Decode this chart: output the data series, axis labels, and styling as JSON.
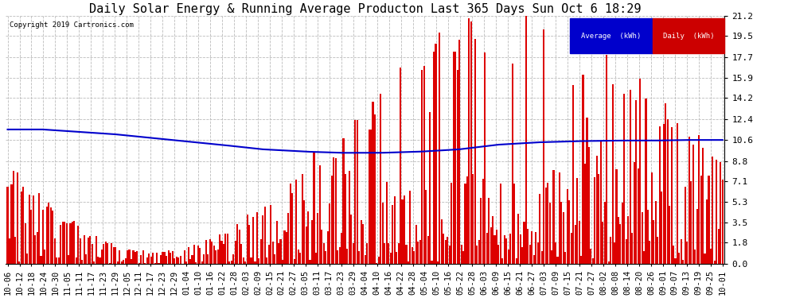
{
  "title": "Daily Solar Energy & Running Average Producton Last 365 Days Sun Oct 6 18:29",
  "copyright": "Copyright 2019 Cartronics.com",
  "yticks": [
    0.0,
    1.8,
    3.5,
    5.3,
    7.1,
    8.8,
    10.6,
    12.4,
    14.2,
    15.9,
    17.7,
    19.5,
    21.2
  ],
  "ymax": 21.2,
  "bar_color": "#dd0000",
  "avg_color": "#0000cc",
  "background_color": "#ffffff",
  "plot_bg_color": "#ffffff",
  "grid_color": "#bbbbbb",
  "legend_avg_bg": "#0000cc",
  "legend_daily_bg": "#cc0000",
  "legend_text_color": "#ffffff",
  "title_fontsize": 11,
  "tick_fontsize": 8,
  "n_bars": 365,
  "xtick_labels": [
    "10-06",
    "10-12",
    "10-18",
    "10-24",
    "10-30",
    "11-05",
    "11-11",
    "11-17",
    "11-23",
    "11-29",
    "12-05",
    "12-11",
    "12-17",
    "12-23",
    "12-29",
    "01-04",
    "01-10",
    "01-16",
    "01-22",
    "01-28",
    "02-03",
    "02-09",
    "02-15",
    "02-21",
    "02-27",
    "03-05",
    "03-11",
    "03-17",
    "03-23",
    "03-29",
    "04-04",
    "04-10",
    "04-16",
    "04-22",
    "04-28",
    "05-04",
    "05-10",
    "05-16",
    "05-22",
    "05-28",
    "06-03",
    "06-09",
    "06-15",
    "06-21",
    "06-27",
    "07-03",
    "07-09",
    "07-15",
    "07-21",
    "07-27",
    "08-02",
    "08-08",
    "08-14",
    "08-20",
    "08-26",
    "09-01",
    "09-07",
    "09-13",
    "09-19",
    "09-25",
    "10-01"
  ],
  "avg_points": [
    11.5,
    11.5,
    11.3,
    11.1,
    10.8,
    10.5,
    10.2,
    9.8,
    9.6,
    9.5,
    9.5,
    9.6,
    9.8,
    10.2,
    10.4,
    10.5,
    10.55,
    10.55,
    10.6,
    10.6,
    10.6
  ],
  "avg_point_days": [
    0,
    18,
    36,
    54,
    72,
    90,
    108,
    130,
    152,
    170,
    190,
    210,
    230,
    250,
    270,
    290,
    310,
    330,
    345,
    358,
    364
  ]
}
